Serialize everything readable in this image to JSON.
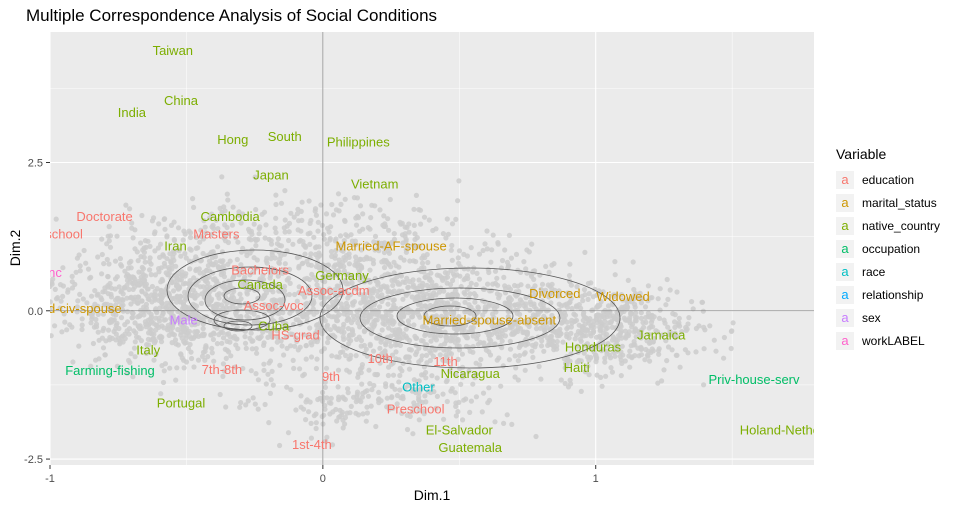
{
  "chart_data": {
    "type": "scatter",
    "title": "Multiple Correspondence Analysis of Social Conditions",
    "xlabel": "Dim.1",
    "ylabel": "Dim.2",
    "xlim": [
      -1.0,
      1.8
    ],
    "ylim": [
      -2.6,
      4.7
    ],
    "x_ticks": [
      -1,
      0,
      1
    ],
    "y_ticks": [
      -2.5,
      0.0,
      2.5
    ],
    "x_tick_labels": [
      "-1",
      "0",
      "1"
    ],
    "y_tick_labels": [
      "-2.5",
      "0.0",
      "2.5"
    ],
    "grid": true,
    "legend_position": "right",
    "legend_title": "Variable",
    "legend_glyph": "a",
    "series": [
      {
        "name": "education",
        "color": "#F8766D"
      },
      {
        "name": "marital_status",
        "color": "#CD9600"
      },
      {
        "name": "native_country",
        "color": "#7CAE00"
      },
      {
        "name": "occupation",
        "color": "#00BE67"
      },
      {
        "name": "race",
        "color": "#00BFC4"
      },
      {
        "name": "relationship",
        "color": "#00A9FF"
      },
      {
        "name": "sex",
        "color": "#C77CFF"
      },
      {
        "name": "workLABEL",
        "color": "#FF61CC"
      }
    ],
    "points": [
      {
        "label": "Taiwan",
        "x": -0.55,
        "y": 4.4,
        "series": "native_country"
      },
      {
        "label": "China",
        "x": -0.52,
        "y": 3.55,
        "series": "native_country"
      },
      {
        "label": "India",
        "x": -0.7,
        "y": 3.35,
        "series": "native_country"
      },
      {
        "label": "Hong",
        "x": -0.33,
        "y": 2.9,
        "series": "native_country"
      },
      {
        "label": "South",
        "x": -0.14,
        "y": 2.95,
        "series": "native_country"
      },
      {
        "label": "Philippines",
        "x": 0.13,
        "y": 2.85,
        "series": "native_country"
      },
      {
        "label": "Japan",
        "x": -0.19,
        "y": 2.3,
        "series": "native_country"
      },
      {
        "label": "Vietnam",
        "x": 0.19,
        "y": 2.15,
        "series": "native_country"
      },
      {
        "label": "Cambodia",
        "x": -0.34,
        "y": 1.6,
        "series": "native_country"
      },
      {
        "label": "Iran",
        "x": -0.54,
        "y": 1.1,
        "series": "native_country"
      },
      {
        "label": "Germany",
        "x": 0.07,
        "y": 0.6,
        "series": "native_country"
      },
      {
        "label": "Canada",
        "x": -0.23,
        "y": 0.45,
        "series": "native_country"
      },
      {
        "label": "Cuba",
        "x": -0.18,
        "y": -0.25,
        "series": "native_country"
      },
      {
        "label": "Italy",
        "x": -0.64,
        "y": -0.65,
        "series": "native_country"
      },
      {
        "label": "Honduras",
        "x": 0.99,
        "y": -0.6,
        "series": "native_country"
      },
      {
        "label": "Jamaica",
        "x": 1.24,
        "y": -0.4,
        "series": "native_country"
      },
      {
        "label": "Haiti",
        "x": 0.93,
        "y": -0.95,
        "series": "native_country"
      },
      {
        "label": "Nicaragua",
        "x": 0.54,
        "y": -1.05,
        "series": "native_country"
      },
      {
        "label": "Portugal",
        "x": -0.52,
        "y": -1.55,
        "series": "native_country"
      },
      {
        "label": "El-Salvador",
        "x": 0.5,
        "y": -2.0,
        "series": "native_country"
      },
      {
        "label": "Guatemala",
        "x": 0.54,
        "y": -2.3,
        "series": "native_country"
      },
      {
        "label": "Holand-Netherlands",
        "x": 1.74,
        "y": -2.0,
        "series": "native_country"
      },
      {
        "label": "Doctorate",
        "x": -0.8,
        "y": 1.6,
        "series": "education"
      },
      {
        "label": "Prof-school",
        "x": -1.0,
        "y": 1.3,
        "series": "education"
      },
      {
        "label": "Masters",
        "x": -0.39,
        "y": 1.3,
        "series": "education"
      },
      {
        "label": "Bachelors",
        "x": -0.23,
        "y": 0.7,
        "series": "education"
      },
      {
        "label": "Assoc-acdm",
        "x": 0.04,
        "y": 0.35,
        "series": "education"
      },
      {
        "label": "Assoc-voc",
        "x": -0.18,
        "y": 0.1,
        "series": "education"
      },
      {
        "label": "HS-grad",
        "x": -0.1,
        "y": -0.4,
        "series": "education"
      },
      {
        "label": "10th",
        "x": 0.21,
        "y": -0.8,
        "series": "education"
      },
      {
        "label": "11th",
        "x": 0.45,
        "y": -0.85,
        "series": "education"
      },
      {
        "label": "7th-8th",
        "x": -0.37,
        "y": -0.98,
        "series": "education"
      },
      {
        "label": "9th",
        "x": 0.03,
        "y": -1.1,
        "series": "education"
      },
      {
        "label": "Preschool",
        "x": 0.34,
        "y": -1.65,
        "series": "education"
      },
      {
        "label": "1st-4th",
        "x": -0.04,
        "y": -2.25,
        "series": "education"
      },
      {
        "label": "Married-AF-spouse",
        "x": 0.25,
        "y": 1.1,
        "series": "marital_status"
      },
      {
        "label": "Divorced",
        "x": 0.85,
        "y": 0.3,
        "series": "marital_status"
      },
      {
        "label": "Widowed",
        "x": 1.1,
        "y": 0.25,
        "series": "marital_status"
      },
      {
        "label": "Married-spouse-absent",
        "x": 0.61,
        "y": -0.15,
        "series": "marital_status"
      },
      {
        "label": "Married-civ-spouse",
        "x": -0.94,
        "y": 0.05,
        "series": "marital_status"
      },
      {
        "label": "Farming-fishing",
        "x": -0.78,
        "y": -1.0,
        "series": "occupation"
      },
      {
        "label": "Priv-house-serv",
        "x": 1.58,
        "y": -1.15,
        "series": "occupation"
      },
      {
        "label": "Other",
        "x": 0.35,
        "y": -1.28,
        "series": "race"
      },
      {
        "label": "Male",
        "x": -0.51,
        "y": -0.15,
        "series": "sex"
      },
      {
        "label": "Self-emp-inc",
        "x": -1.09,
        "y": 0.65,
        "series": "workLABEL"
      }
    ]
  }
}
